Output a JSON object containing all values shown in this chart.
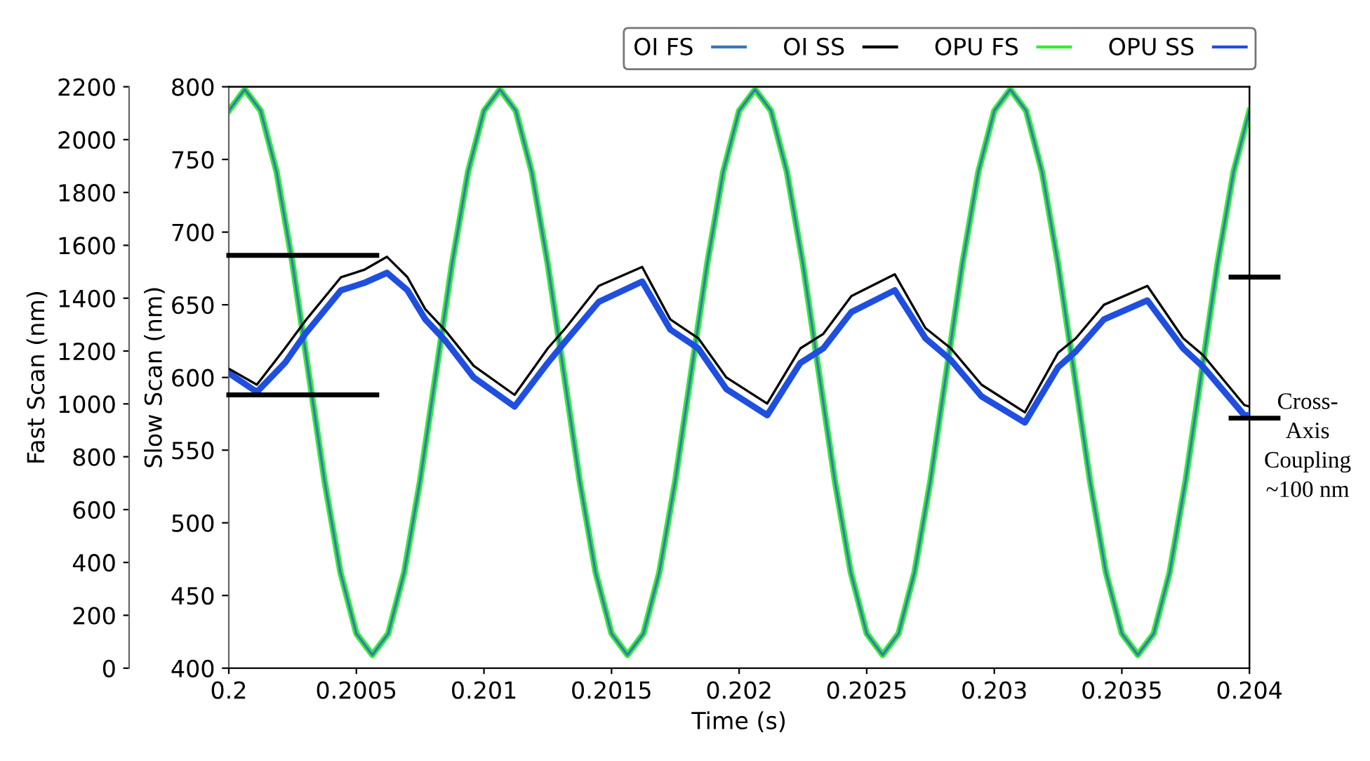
{
  "chart_data": {
    "type": "line",
    "xlabel": "Time (s)",
    "ylabel": "Fast Scan (nm)",
    "y2label": "Slow Scan (nm)",
    "xlim": [
      0.2,
      0.204
    ],
    "xticks": [
      0.2,
      0.2005,
      0.201,
      0.2015,
      0.202,
      0.2025,
      0.203,
      0.2035,
      0.204
    ],
    "ylim": [
      0,
      2200
    ],
    "yticks": [
      0,
      200,
      400,
      600,
      800,
      1000,
      1200,
      1400,
      1600,
      1800,
      2000,
      2200
    ],
    "y2lim": [
      400,
      800
    ],
    "y2ticks": [
      400,
      450,
      500,
      550,
      600,
      650,
      700,
      750,
      800
    ],
    "grid": false,
    "legend": "top right",
    "marker": "none",
    "line_style": "solid",
    "x": [
      0.2,
      0.2000625,
      0.200125,
      0.2001875,
      0.20025,
      0.2003125,
      0.200375,
      0.2004375,
      0.2005,
      0.2005625,
      0.200625,
      0.2006875,
      0.20075,
      0.2008125,
      0.200875,
      0.2009375,
      0.201,
      0.2010625,
      0.201125,
      0.2011875,
      0.20125,
      0.2013125,
      0.201375,
      0.2014375,
      0.2015,
      0.2015625,
      0.201625,
      0.2016875,
      0.20175,
      0.2018125,
      0.201875,
      0.2019375,
      0.202,
      0.2020625,
      0.202125,
      0.2021875,
      0.20225,
      0.2023125,
      0.202375,
      0.2024375,
      0.2025,
      0.2025625,
      0.202625,
      0.2026875,
      0.20275,
      0.2028125,
      0.202875,
      0.2029375,
      0.203,
      0.2030625,
      0.203125,
      0.2031875,
      0.20325,
      0.2033125,
      0.203375,
      0.2034375,
      0.2035,
      0.2035625,
      0.203625,
      0.2036875,
      0.20375,
      0.2038125,
      0.203875,
      0.2039375,
      0.204
    ],
    "series": [
      {
        "name": "OI FS",
        "color": "#3a78b8",
        "values": [
          2109,
          2190,
          2109,
          1877,
          1530,
          1120,
          710,
          363,
          131,
          50,
          131,
          363,
          710,
          1120,
          1530,
          1877,
          2109,
          2190,
          2109,
          1877,
          1530,
          1120,
          710,
          363,
          131,
          50,
          131,
          363,
          710,
          1120,
          1530,
          1877,
          2109,
          2190,
          2109,
          1877,
          1530,
          1120,
          710,
          363,
          131,
          50,
          131,
          363,
          710,
          1120,
          1530,
          1877,
          2109,
          2190,
          2109,
          1877,
          1530,
          1120,
          710,
          363,
          131,
          50,
          131,
          363,
          710,
          1120,
          1530,
          1877,
          2109
        ]
      },
      {
        "name": "OI SS",
        "color": "#000000",
        "axis": "y2",
        "x": [
          0.2,
          0.20011,
          0.20022,
          0.2003,
          0.20044,
          0.20053,
          0.20062,
          0.2007,
          0.20077,
          0.20085,
          0.20096,
          0.20112,
          0.20125,
          0.20132,
          0.20145,
          0.20162,
          0.20173,
          0.20184,
          0.20195,
          0.20211,
          0.20224,
          0.20233,
          0.20244,
          0.20261,
          0.20273,
          0.20283,
          0.20295,
          0.20312,
          0.20325,
          0.20332,
          0.20343,
          0.2036,
          0.20374,
          0.20382,
          0.20398,
          0.204
        ],
        "values": [
          606,
          595,
          620,
          639,
          669,
          674,
          683,
          669,
          647,
          632,
          608,
          588,
          620,
          634,
          663,
          676,
          640,
          627,
          600,
          582,
          620,
          630,
          656,
          671,
          634,
          620,
          595,
          576,
          617,
          627,
          650,
          663,
          627,
          615,
          581,
          580
        ]
      },
      {
        "name": "OPU FS",
        "color": "#33ee33",
        "values": [
          2109,
          2190,
          2109,
          1877,
          1530,
          1120,
          710,
          363,
          131,
          50,
          131,
          363,
          710,
          1120,
          1530,
          1877,
          2109,
          2190,
          2109,
          1877,
          1530,
          1120,
          710,
          363,
          131,
          50,
          131,
          363,
          710,
          1120,
          1530,
          1877,
          2109,
          2190,
          2109,
          1877,
          1530,
          1120,
          710,
          363,
          131,
          50,
          131,
          363,
          710,
          1120,
          1530,
          1877,
          2109,
          2190,
          2109,
          1877,
          1530,
          1120,
          710,
          363,
          131,
          50,
          131,
          363,
          710,
          1120,
          1530,
          1877,
          2109
        ]
      },
      {
        "name": "OPU SS",
        "color": "#1f4fe0",
        "axis": "y2",
        "x": [
          0.2,
          0.20011,
          0.20022,
          0.2003,
          0.20044,
          0.20053,
          0.20062,
          0.2007,
          0.20077,
          0.20085,
          0.20096,
          0.20112,
          0.20125,
          0.20132,
          0.20145,
          0.20162,
          0.20173,
          0.20184,
          0.20195,
          0.20211,
          0.20224,
          0.20233,
          0.20244,
          0.20261,
          0.20273,
          0.20283,
          0.20295,
          0.20312,
          0.20325,
          0.20332,
          0.20343,
          0.2036,
          0.20374,
          0.20382,
          0.20398,
          0.204
        ],
        "values": [
          603,
          590,
          610,
          630,
          660,
          665,
          672,
          660,
          640,
          625,
          600,
          580,
          610,
          625,
          652,
          666,
          633,
          620,
          592,
          574,
          610,
          620,
          645,
          660,
          627,
          612,
          587,
          569,
          607,
          618,
          640,
          653,
          620,
          607,
          574,
          574
        ]
      }
    ],
    "annotations": [
      "Cross-\nAxis\nCoupling\n~100 nm"
    ]
  }
}
